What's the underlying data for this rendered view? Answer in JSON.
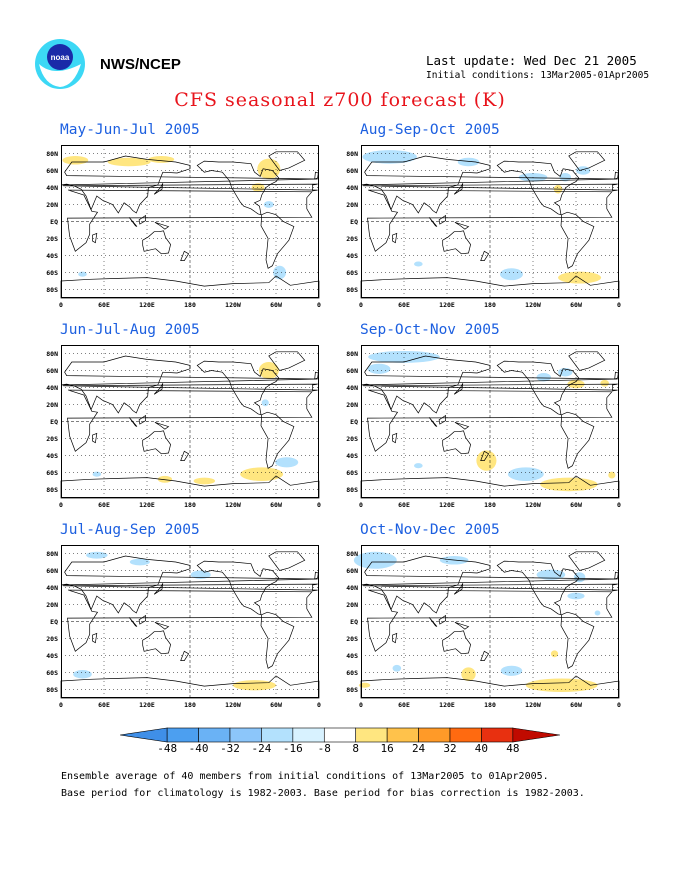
{
  "header": {
    "org": "NWS/NCEP",
    "last_update": "Last update: Wed Dec 21 2005",
    "initial_conditions": "Initial conditions: 13Mar2005-01Apr2005",
    "title": "CFS seasonal z700 forecast (K)"
  },
  "panels": [
    {
      "title": "May-Jun-Jul 2005"
    },
    {
      "title": "Aug-Sep-Oct 2005"
    },
    {
      "title": "Jun-Jul-Aug 2005"
    },
    {
      "title": "Sep-Oct-Nov 2005"
    },
    {
      "title": "Jul-Aug-Sep 2005"
    },
    {
      "title": "Oct-Nov-Dec 2005"
    }
  ],
  "axes": {
    "lat_labels": [
      "80N",
      "60N",
      "40N",
      "20N",
      "EQ",
      "20S",
      "40S",
      "60S",
      "80S"
    ],
    "lon_labels": [
      "0",
      "60E",
      "120E",
      "180",
      "120W",
      "60W",
      "0"
    ]
  },
  "legend": {
    "labels": [
      "-48",
      "-40",
      "-32",
      "-24",
      "-16",
      "-8",
      "8",
      "16",
      "24",
      "32",
      "40",
      "48"
    ],
    "colors": [
      "#3f8fe8",
      "#4c9ff0",
      "#6ab2f5",
      "#8cc6fa",
      "#b3e1fd",
      "#d8f2ff",
      "#ffffff",
      "#ffe680",
      "#ffc24b",
      "#ff9a28",
      "#ff6a10",
      "#e83010",
      "#c00a00"
    ]
  },
  "footer": {
    "line1": "Ensemble average of 40 members from initial conditions of 13Mar2005 to 01Apr2005.",
    "line2": "Base period for climatology is 1982-2003. Base period for bias correction is 1982-2003."
  },
  "anomaly_colors": {
    "cold": "#b3e1fd",
    "warm": "#ffe680"
  }
}
